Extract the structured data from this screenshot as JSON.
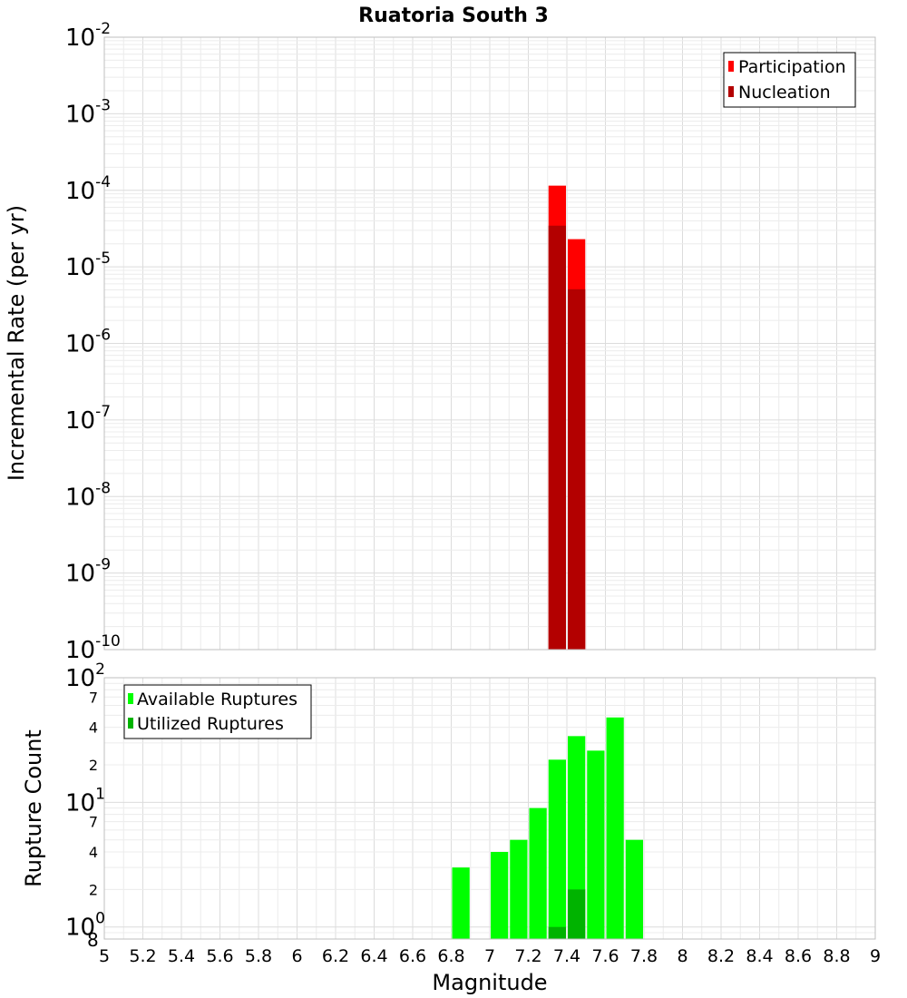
{
  "chart_data": [
    {
      "type": "bar",
      "title": "Ruatoria South 3",
      "xlabel": "",
      "ylabel": "Incremental Rate (per yr)",
      "yscale": "log",
      "ylim": [
        1e-10,
        0.01
      ],
      "xlim": [
        5,
        9
      ],
      "bin_width": 0.1,
      "legend": "top-right",
      "y_tick_exponents": [
        "-10",
        "-9",
        "-8",
        "-7",
        "-6",
        "-5",
        "-4",
        "-3",
        "-2"
      ],
      "series": [
        {
          "name": "Participation",
          "color": "#ff0000",
          "x": [
            7.35,
            7.45
          ],
          "values": [
            0.000115,
            2.3e-05
          ]
        },
        {
          "name": "Nucleation",
          "color": "#b30000",
          "x": [
            7.35,
            7.45
          ],
          "values": [
            3.45e-05,
            5.1e-06
          ]
        }
      ]
    },
    {
      "type": "bar",
      "title": "",
      "xlabel": "Magnitude",
      "ylabel": "Rupture Count",
      "yscale": "log",
      "ylim": [
        0.8,
        100
      ],
      "xlim": [
        5,
        9
      ],
      "bin_width": 0.1,
      "legend": "top-left",
      "y_tick_exponents": [
        "0",
        "1",
        "2"
      ],
      "y_minor_labels": [
        {
          "value": 2,
          "label": "2"
        },
        {
          "value": 4,
          "label": "4"
        },
        {
          "value": 7,
          "label": "7"
        },
        {
          "value": 20,
          "label": "2"
        },
        {
          "value": 40,
          "label": "4"
        },
        {
          "value": 70,
          "label": "7"
        }
      ],
      "y_lower_corner_label": "8",
      "x_tick_labels": [
        "5",
        "5.2",
        "5.4",
        "5.6",
        "5.8",
        "6",
        "6.2",
        "6.4",
        "6.6",
        "6.8",
        "7",
        "7.2",
        "7.4",
        "7.6",
        "7.8",
        "8",
        "8.2",
        "8.4",
        "8.6",
        "8.8",
        "9"
      ],
      "series": [
        {
          "name": "Available Ruptures",
          "color": "#00ff00",
          "x": [
            6.85,
            7.05,
            7.15,
            7.25,
            7.35,
            7.45,
            7.55,
            7.65,
            7.75
          ],
          "values": [
            3,
            4,
            5,
            9,
            22,
            34,
            26,
            48,
            5
          ]
        },
        {
          "name": "Utilized Ruptures",
          "color": "#00b300",
          "x": [
            7.35,
            7.45
          ],
          "values": [
            1,
            2
          ]
        }
      ]
    }
  ]
}
